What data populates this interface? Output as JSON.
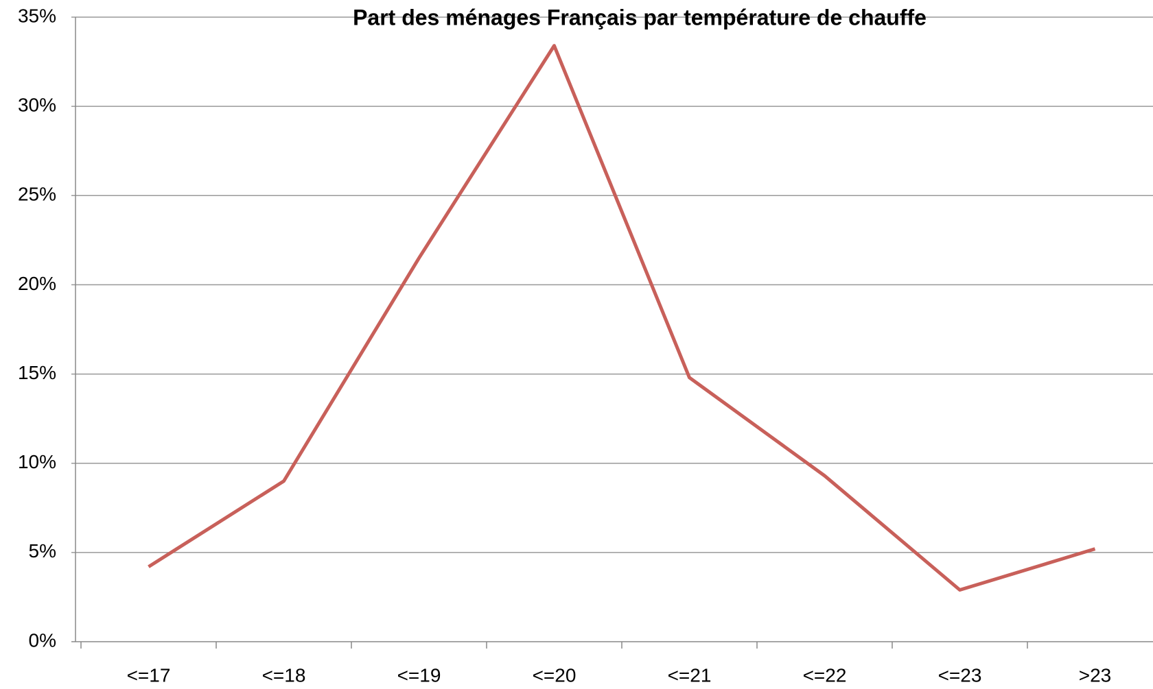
{
  "chart_data": {
    "type": "line",
    "title": "Part des ménages Français par température de chauffe",
    "categories": [
      "<=17",
      "<=18",
      "<=19",
      "<=20",
      "<=21",
      "<=22",
      "<=23",
      ">23"
    ],
    "series": [
      {
        "color": "#c8605a",
        "values": [
          4.2,
          9.0,
          21.5,
          33.4,
          14.8,
          9.3,
          2.9,
          5.2
        ]
      }
    ],
    "ylim": [
      0,
      35
    ],
    "yticks": [
      {
        "value": 0,
        "label": "0%"
      },
      {
        "value": 5,
        "label": "5%"
      },
      {
        "value": 10,
        "label": "10%"
      },
      {
        "value": 15,
        "label": "15%"
      },
      {
        "value": 20,
        "label": "20%"
      },
      {
        "value": 25,
        "label": "25%"
      },
      {
        "value": 30,
        "label": "30%"
      },
      {
        "value": 35,
        "label": "35%"
      }
    ],
    "grid": true
  }
}
